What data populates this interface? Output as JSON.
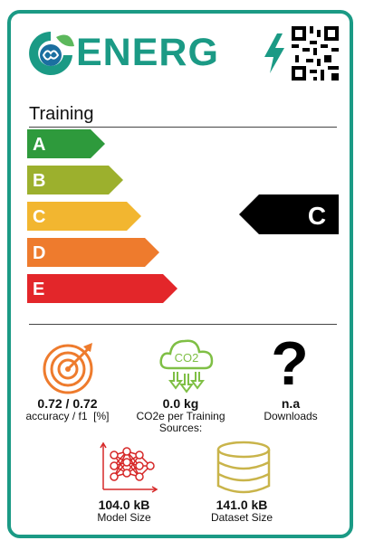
{
  "brand": {
    "name": "ENERG",
    "accent": "#1b9a85"
  },
  "section": {
    "title": "Training"
  },
  "scale": {
    "classes": [
      {
        "label": "A",
        "color": "#2e9a3c"
      },
      {
        "label": "B",
        "color": "#9cb02d"
      },
      {
        "label": "C",
        "color": "#f2b630"
      },
      {
        "label": "D",
        "color": "#ee7b2d"
      },
      {
        "label": "E",
        "color": "#e3262a"
      }
    ],
    "current": "C"
  },
  "metrics": {
    "accuracy": {
      "value": "0.72 / 0.72",
      "label": "accuracy / f1  [%]",
      "icon": "target-icon"
    },
    "co2": {
      "value": "0.0 kg",
      "label_line1": "CO2e per Training",
      "label_line2": "Sources:",
      "icon": "co2-cloud-icon",
      "icon_text": "CO2"
    },
    "downloads": {
      "value": "n.a",
      "label": "Downloads",
      "icon": "question-icon"
    },
    "model_size": {
      "value": "104.0 kB",
      "label": "Model Size",
      "icon": "neural-network-icon"
    },
    "dataset_size": {
      "value": "141.0 kB",
      "label": "Dataset Size",
      "icon": "database-icon"
    }
  }
}
